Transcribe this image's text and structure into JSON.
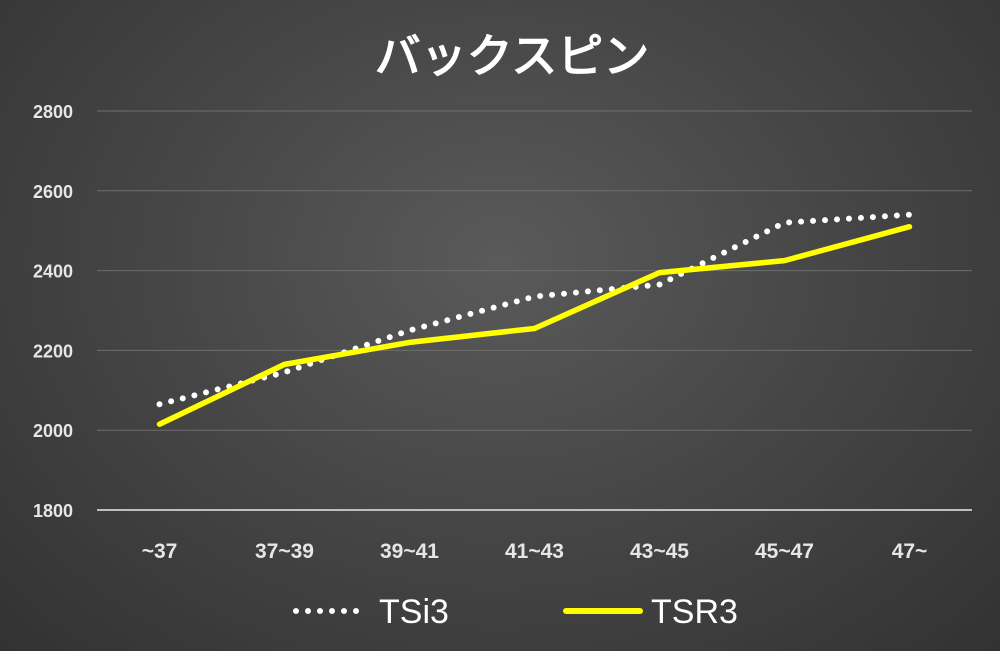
{
  "chart_data": {
    "type": "line",
    "title": "バックスピン",
    "categories": [
      "~37",
      "37~39",
      "39~41",
      "41~43",
      "43~45",
      "45~47",
      "47~"
    ],
    "ylim": [
      1800,
      2800
    ],
    "yticks": [
      "1800",
      "2000",
      "2200",
      "2400",
      "2600",
      "2800"
    ],
    "grid": true,
    "legend_position": "bottom",
    "series": [
      {
        "name": "TSi3",
        "values": [
          2065,
          2145,
          2250,
          2335,
          2365,
          2520,
          2540
        ],
        "color": "#ffffff",
        "style": "dotted"
      },
      {
        "name": "TSR3",
        "values": [
          2015,
          2165,
          2220,
          2255,
          2395,
          2425,
          2510
        ],
        "color": "#ffff00",
        "style": "solid"
      }
    ]
  }
}
